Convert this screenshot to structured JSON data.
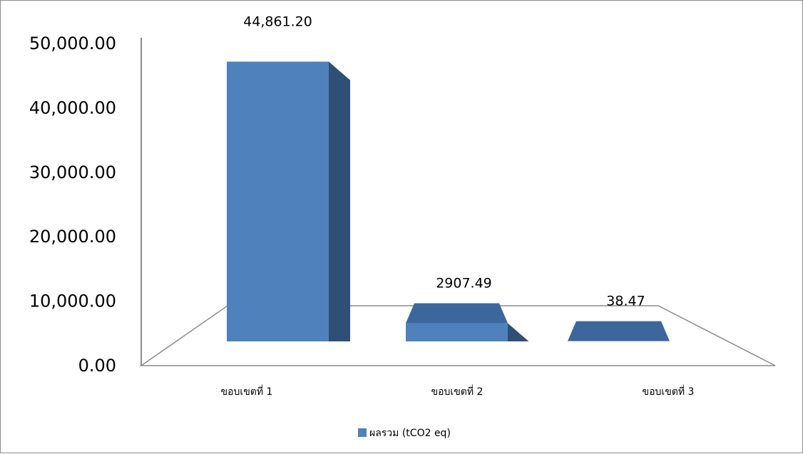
{
  "chart_data": {
    "type": "bar",
    "categories": [
      "ขอบเขตที่ 1",
      "ขอบเขตที่ 2",
      "ขอบเขตที่ 3"
    ],
    "series": [
      {
        "name": "ผลรวม (tCO2 eq)",
        "values": [
          44861.2,
          2907.49,
          38.47
        ],
        "data_labels": [
          "44,861.20",
          "2907.49",
          "38.47"
        ],
        "color": "#4f81bd"
      }
    ],
    "ylim": [
      0,
      50000
    ],
    "y_ticks": [
      0,
      10000,
      20000,
      30000,
      40000,
      50000
    ],
    "y_tick_labels": [
      "0.00",
      "10,000.00",
      "20,000.00",
      "30,000.00",
      "40,000.00",
      "50,000.00"
    ],
    "legend_position": "bottom",
    "grid": false,
    "style": "3d-column"
  },
  "colors": {
    "bar_front": "#4f81bd",
    "bar_top": "#3c679c",
    "bar_side": "#2f4f76",
    "axis": "#8c8c8c"
  }
}
